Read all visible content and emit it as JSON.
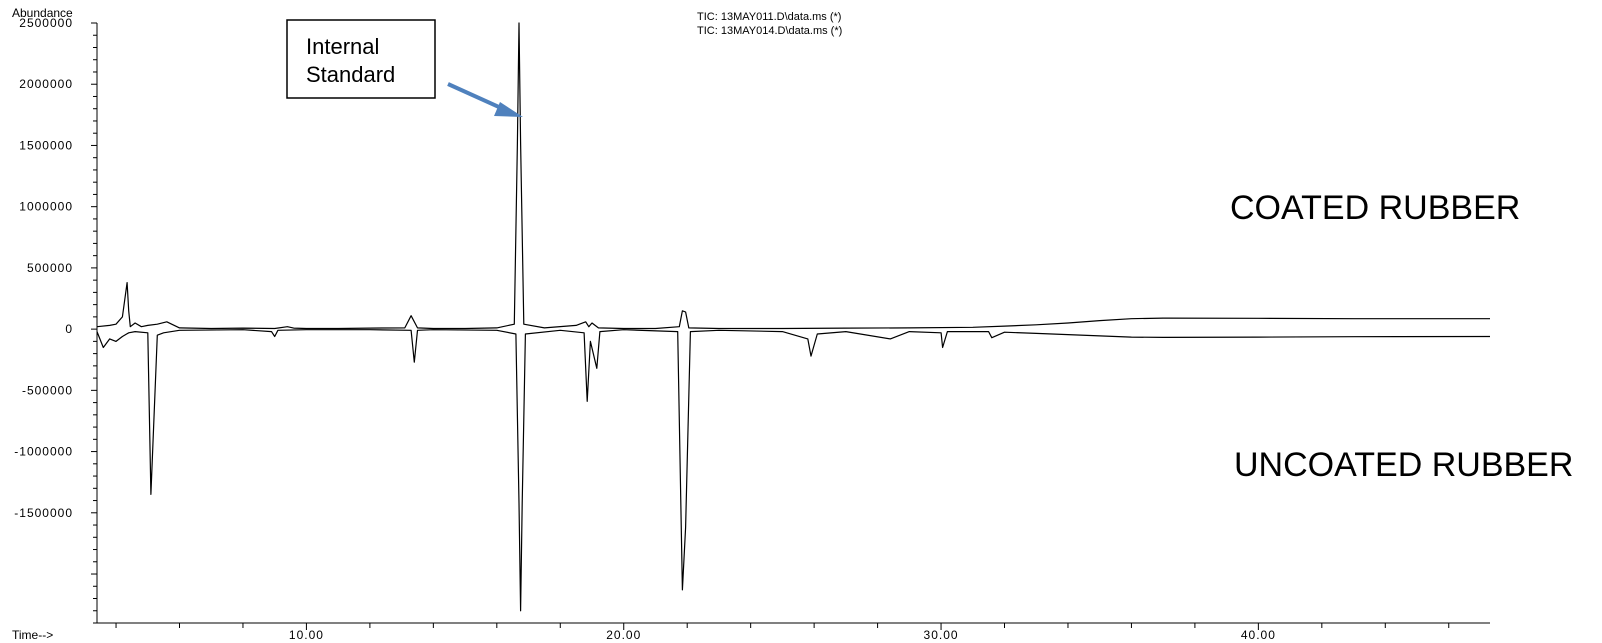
{
  "chart_data": {
    "type": "line",
    "ylabel": "Abundance",
    "xlabel": "Time-->",
    "xlim": [
      3.4,
      47.3
    ],
    "ylim": [
      -2400000,
      2500000
    ],
    "x_ticks": [
      10,
      20,
      30,
      40
    ],
    "x_tick_labels": [
      "10.00",
      "20.00",
      "30.00",
      "40.00"
    ],
    "y_ticks": [
      2500000,
      2000000,
      1500000,
      1000000,
      500000,
      0,
      -500000,
      -1000000,
      -1500000
    ],
    "y_tick_labels": [
      "2500000",
      "2000000",
      "1500000",
      "1000000",
      "500000",
      "0",
      "-500000",
      "-1000000",
      "-1500000"
    ],
    "legend": [
      "TIC: 13MAY011.D\\data.ms (*)",
      "TIC: 13MAY014.D\\data.ms (*)"
    ],
    "annotations": {
      "internal_standard": {
        "line1": "Internal",
        "line2": "Standard",
        "x": 16.7,
        "y": 1750000
      },
      "coated": "COATED RUBBER",
      "uncoated": "UNCOATED RUBBER"
    },
    "series": [
      {
        "x": [
          3.4,
          3.8,
          4.0,
          4.2,
          4.35,
          4.4,
          4.45,
          4.6,
          4.8,
          5.0,
          5.3,
          5.6,
          6.0,
          7,
          8,
          9,
          9.4,
          9.6,
          10,
          11,
          12,
          13.1,
          13.3,
          13.5,
          14,
          15,
          16,
          16.55,
          16.65,
          16.7,
          16.75,
          16.85,
          17.5,
          18.5,
          18.8,
          18.9,
          19.0,
          19.2,
          20,
          21,
          21.75,
          21.85,
          21.95,
          22.05,
          23,
          25,
          27,
          29,
          31,
          32,
          33,
          34,
          35,
          36,
          37,
          40,
          43,
          47.3
        ],
        "y": [
          20000,
          30000,
          40000,
          100000,
          380000,
          150000,
          20000,
          50000,
          20000,
          30000,
          40000,
          60000,
          10000,
          5000,
          8000,
          5000,
          20000,
          8000,
          5000,
          5000,
          8000,
          10000,
          110000,
          10000,
          5000,
          5000,
          10000,
          40000,
          1520000,
          2500000,
          1520000,
          40000,
          10000,
          30000,
          60000,
          20000,
          50000,
          10000,
          5000,
          5000,
          20000,
          150000,
          140000,
          10000,
          5000,
          5000,
          8000,
          10000,
          15000,
          25000,
          35000,
          50000,
          70000,
          85000,
          90000,
          88000,
          85000,
          85000
        ]
      },
      {
        "x": [
          3.4,
          3.6,
          3.8,
          4.0,
          4.2,
          4.4,
          4.6,
          5.0,
          5.1,
          5.2,
          5.3,
          5.5,
          6,
          8,
          8.9,
          9.0,
          9.1,
          10,
          12,
          13.3,
          13.4,
          13.5,
          14,
          16,
          16.6,
          16.7,
          16.75,
          16.8,
          16.9,
          18,
          18.75,
          18.85,
          18.95,
          19.15,
          19.25,
          20,
          21.7,
          21.85,
          21.95,
          22.1,
          23,
          25,
          25.8,
          25.9,
          26.1,
          27,
          28.4,
          29,
          30.0,
          30.05,
          30.2,
          31.5,
          31.6,
          32,
          33,
          34,
          35,
          36,
          37,
          40,
          43,
          47.3
        ],
        "y": [
          -20000,
          -150000,
          -80000,
          -100000,
          -60000,
          -30000,
          -20000,
          -30000,
          -1350000,
          -700000,
          -50000,
          -30000,
          -10000,
          -5000,
          -20000,
          -60000,
          -10000,
          -5000,
          -5000,
          -10000,
          -270000,
          -10000,
          -5000,
          -10000,
          -40000,
          -1420000,
          -2300000,
          -1420000,
          -40000,
          -10000,
          -30000,
          -590000,
          -100000,
          -320000,
          -20000,
          -5000,
          -20000,
          -2130000,
          -1620000,
          -20000,
          -10000,
          -20000,
          -80000,
          -220000,
          -40000,
          -20000,
          -80000,
          -20000,
          -30000,
          -150000,
          -20000,
          -20000,
          -70000,
          -25000,
          -35000,
          -45000,
          -55000,
          -65000,
          -68000,
          -65000,
          -62000,
          -60000
        ]
      }
    ]
  }
}
